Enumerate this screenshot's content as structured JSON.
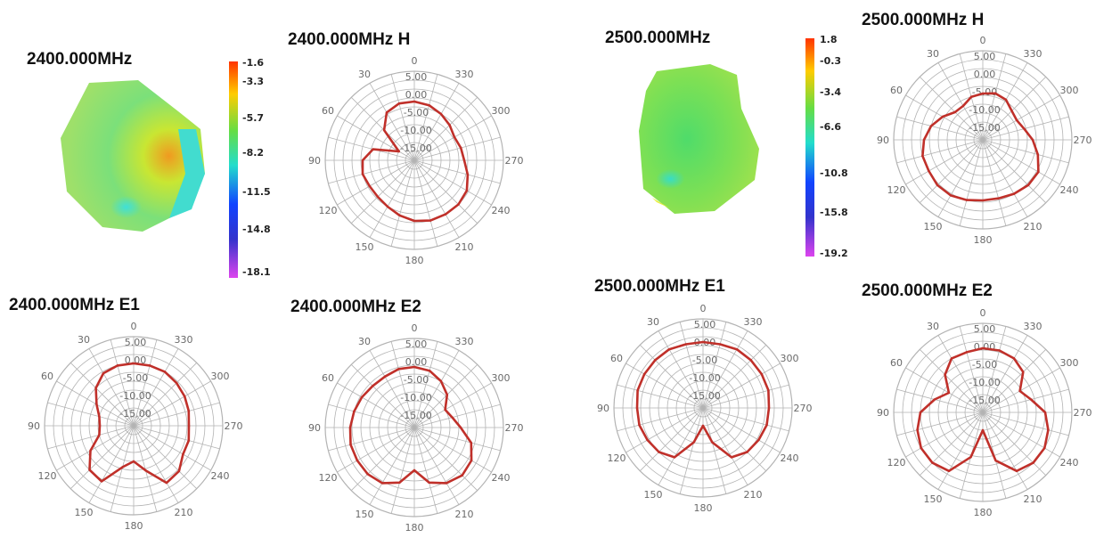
{
  "colors": {
    "pattern": "#c0302a",
    "grid": "#b3b3b3"
  },
  "blocks": [
    {
      "freq_title": "2400.000MHz",
      "colorbar": [
        "-1.6",
        "-3.3",
        "-5.7",
        "-8.2",
        "-11.5",
        "-14.8",
        "-18.1"
      ],
      "charts": [
        {
          "title": "2400.000MHz  H",
          "type": "polar",
          "r_labels": [
            "5.00",
            "0.00",
            "-5.00",
            "-10.00",
            "-15.00"
          ],
          "angle_labels": [
            "0",
            "30",
            "60",
            "90",
            "120",
            "150",
            "180",
            "210",
            "240",
            "270",
            "300",
            "330"
          ],
          "angles": [
            0,
            15,
            30,
            45,
            60,
            75,
            90,
            105,
            120,
            135,
            150,
            165,
            180,
            195,
            210,
            225,
            240,
            255,
            270,
            285,
            300,
            315,
            330,
            345
          ],
          "values": [
            -3.5,
            -3.5,
            -4.5,
            -8,
            -15,
            -8,
            -5.5,
            -5,
            -5.5,
            -5.5,
            -5,
            -4,
            -3,
            -2.5,
            -2.5,
            -2.5,
            -3,
            -4.5,
            -6,
            -6.5,
            -7,
            -6,
            -5,
            -4
          ]
        },
        {
          "title": "2400.000MHz  E1",
          "type": "polar",
          "r_labels": [
            "5.00",
            "0.00",
            "-5.00",
            "-10.00",
            "-15.00"
          ],
          "angle_labels": [
            "0",
            "30",
            "60",
            "90",
            "120",
            "150",
            "180",
            "210",
            "240",
            "270",
            "300",
            "330"
          ],
          "angles": [
            0,
            15,
            30,
            45,
            60,
            75,
            90,
            105,
            120,
            135,
            150,
            165,
            180,
            195,
            210,
            225,
            240,
            255,
            270,
            285,
            300,
            315,
            330,
            345
          ],
          "values": [
            -2.5,
            -2.5,
            -3,
            -5,
            -8,
            -10,
            -10.5,
            -10,
            -6,
            -2.5,
            -2,
            -8,
            -10,
            -7,
            -1.5,
            -2,
            -4,
            -4,
            -4.5,
            -4,
            -3.5,
            -3,
            -2.5,
            -2.5
          ]
        },
        {
          "title": "2400.000MHz  E2",
          "type": "polar",
          "r_labels": [
            "5.00",
            "0.00",
            "-5.00",
            "-10.00",
            "-15.00"
          ],
          "angle_labels": [
            "0",
            "30",
            "60",
            "90",
            "120",
            "150",
            "180",
            "210",
            "240",
            "270",
            "300",
            "330"
          ],
          "angles": [
            0,
            15,
            30,
            45,
            60,
            75,
            90,
            105,
            120,
            135,
            150,
            165,
            180,
            195,
            210,
            225,
            240,
            255,
            270,
            285,
            300,
            315,
            330,
            345
          ],
          "values": [
            -3,
            -3,
            -3.5,
            -3.5,
            -3,
            -2.5,
            -2,
            -1.5,
            -1.5,
            -1.5,
            -2,
            -4,
            -8,
            -4,
            -2,
            -1,
            -1.5,
            -3.5,
            -7,
            -9,
            -10,
            -7,
            -5,
            -3.5
          ]
        }
      ]
    },
    {
      "freq_title": "2500.000MHz",
      "colorbar": [
        "1.8",
        "-0.3",
        "-3.4",
        "-6.6",
        "-10.8",
        "-15.8",
        "-19.2"
      ],
      "charts": [
        {
          "title": "2500.000MHz  H",
          "type": "polar",
          "r_labels": [
            "5.00",
            "0.00",
            "-5.00",
            "-10.00",
            "-15.00"
          ],
          "angle_labels": [
            "0",
            "30",
            "60",
            "90",
            "120",
            "150",
            "180",
            "210",
            "240",
            "270",
            "300",
            "330"
          ],
          "angles": [
            0,
            15,
            30,
            45,
            60,
            75,
            90,
            105,
            120,
            135,
            150,
            165,
            180,
            195,
            210,
            225,
            240,
            255,
            270,
            285,
            300,
            315,
            330,
            345
          ],
          "values": [
            -7,
            -7.5,
            -9,
            -9,
            -7,
            -5,
            -3.5,
            -2.5,
            -2.5,
            -2,
            -2,
            -2.5,
            -3,
            -3,
            -2.5,
            -2,
            -2,
            -4,
            -6,
            -8,
            -9,
            -8.5,
            -7,
            -6.5
          ]
        },
        {
          "title": "2500.000MHz  E1",
          "type": "polar",
          "r_labels": [
            "5.00",
            "0.00",
            "-5.00",
            "-10.00",
            "-15.00"
          ],
          "angle_labels": [
            "0",
            "30",
            "60",
            "90",
            "120",
            "150",
            "180",
            "210",
            "240",
            "270",
            "300",
            "330"
          ],
          "angles": [
            0,
            15,
            30,
            45,
            60,
            75,
            90,
            105,
            120,
            135,
            150,
            165,
            180,
            195,
            210,
            225,
            240,
            255,
            270,
            285,
            300,
            315,
            330,
            345
          ],
          "values": [
            -1.5,
            -1.5,
            -1,
            -1,
            -1,
            -1,
            -1.5,
            -1.5,
            -2,
            -2.5,
            -4,
            -10,
            -15,
            -10,
            -4,
            -2.5,
            -2,
            -1.5,
            -1.5,
            -1,
            -1,
            -1,
            -1,
            -1.5
          ]
        },
        {
          "title": "2500.000MHz  E2",
          "type": "polar",
          "r_labels": [
            "5.00",
            "0.00",
            "-5.00",
            "-10.00",
            "-15.00"
          ],
          "angle_labels": [
            "0",
            "30",
            "60",
            "90",
            "120",
            "150",
            "180",
            "210",
            "240",
            "270",
            "300",
            "330"
          ],
          "angles": [
            0,
            15,
            30,
            45,
            60,
            75,
            90,
            105,
            120,
            135,
            150,
            165,
            180,
            195,
            210,
            225,
            240,
            255,
            270,
            285,
            300,
            315,
            330,
            345
          ],
          "values": [
            -2,
            -2.5,
            -2.5,
            -5,
            -9,
            -6,
            -2.5,
            -1,
            0,
            0,
            -1,
            -7,
            -15,
            -6,
            -1,
            0,
            0,
            -1,
            -2.5,
            -6,
            -8,
            -4,
            -2.5,
            -2
          ]
        }
      ]
    }
  ],
  "chart_data": [
    {
      "type": "polar-radar",
      "title": "2400.000MHz  H",
      "r_ticks": [
        5,
        0,
        -5,
        -10,
        -15
      ],
      "angles": [
        0,
        15,
        30,
        45,
        60,
        75,
        90,
        105,
        120,
        135,
        150,
        165,
        180,
        195,
        210,
        225,
        240,
        255,
        270,
        285,
        300,
        315,
        330,
        345
      ],
      "values": [
        -3.5,
        -3.5,
        -4.5,
        -8,
        -15,
        -8,
        -5.5,
        -5,
        -5.5,
        -5.5,
        -5,
        -4,
        -3,
        -2.5,
        -2.5,
        -2.5,
        -3,
        -4.5,
        -6,
        -6.5,
        -7,
        -6,
        -5,
        -4
      ]
    },
    {
      "type": "polar-radar",
      "title": "2400.000MHz  E1",
      "r_ticks": [
        5,
        0,
        -5,
        -10,
        -15
      ],
      "angles": [
        0,
        15,
        30,
        45,
        60,
        75,
        90,
        105,
        120,
        135,
        150,
        165,
        180,
        195,
        210,
        225,
        240,
        255,
        270,
        285,
        300,
        315,
        330,
        345
      ],
      "values": [
        -2.5,
        -2.5,
        -3,
        -5,
        -8,
        -10,
        -10.5,
        -10,
        -6,
        -2.5,
        -2,
        -8,
        -10,
        -7,
        -1.5,
        -2,
        -4,
        -4,
        -4.5,
        -4,
        -3.5,
        -3,
        -2.5,
        -2.5
      ]
    },
    {
      "type": "polar-radar",
      "title": "2400.000MHz  E2",
      "r_ticks": [
        5,
        0,
        -5,
        -10,
        -15
      ],
      "angles": [
        0,
        15,
        30,
        45,
        60,
        75,
        90,
        105,
        120,
        135,
        150,
        165,
        180,
        195,
        210,
        225,
        240,
        255,
        270,
        285,
        300,
        315,
        330,
        345
      ],
      "values": [
        -3,
        -3,
        -3.5,
        -3.5,
        -3,
        -2.5,
        -2,
        -1.5,
        -1.5,
        -1.5,
        -2,
        -4,
        -8,
        -4,
        -2,
        -1,
        -1.5,
        -3.5,
        -7,
        -9,
        -10,
        -7,
        -5,
        -3.5
      ]
    },
    {
      "type": "polar-radar",
      "title": "2500.000MHz  H",
      "r_ticks": [
        5,
        0,
        -5,
        -10,
        -15
      ],
      "angles": [
        0,
        15,
        30,
        45,
        60,
        75,
        90,
        105,
        120,
        135,
        150,
        165,
        180,
        195,
        210,
        225,
        240,
        255,
        270,
        285,
        300,
        315,
        330,
        345
      ],
      "values": [
        -7,
        -7.5,
        -9,
        -9,
        -7,
        -5,
        -3.5,
        -2.5,
        -2.5,
        -2,
        -2,
        -2.5,
        -3,
        -3,
        -2.5,
        -2,
        -2,
        -4,
        -6,
        -8,
        -9,
        -8.5,
        -7,
        -6.5
      ]
    },
    {
      "type": "polar-radar",
      "title": "2500.000MHz  E1",
      "r_ticks": [
        5,
        0,
        -5,
        -10,
        -15
      ],
      "angles": [
        0,
        15,
        30,
        45,
        60,
        75,
        90,
        105,
        120,
        135,
        150,
        165,
        180,
        195,
        210,
        225,
        240,
        255,
        270,
        285,
        300,
        315,
        330,
        345
      ],
      "values": [
        -1.5,
        -1.5,
        -1,
        -1,
        -1,
        -1,
        -1.5,
        -1.5,
        -2,
        -2.5,
        -4,
        -10,
        -15,
        -10,
        -4,
        -2.5,
        -2,
        -1.5,
        -1.5,
        -1,
        -1,
        -1,
        -1,
        -1.5
      ]
    },
    {
      "type": "polar-radar",
      "title": "2500.000MHz  E2",
      "r_ticks": [
        5,
        0,
        -5,
        -10,
        -15
      ],
      "angles": [
        0,
        15,
        30,
        45,
        60,
        75,
        90,
        105,
        120,
        135,
        150,
        165,
        180,
        195,
        210,
        225,
        240,
        255,
        270,
        285,
        300,
        315,
        330,
        345
      ],
      "values": [
        -2,
        -2.5,
        -2.5,
        -5,
        -9,
        -6,
        -2.5,
        -1,
        0,
        0,
        -1,
        -7,
        -15,
        -6,
        -1,
        0,
        0,
        -1,
        -2.5,
        -6,
        -8,
        -4,
        -2.5,
        -2
      ]
    }
  ]
}
